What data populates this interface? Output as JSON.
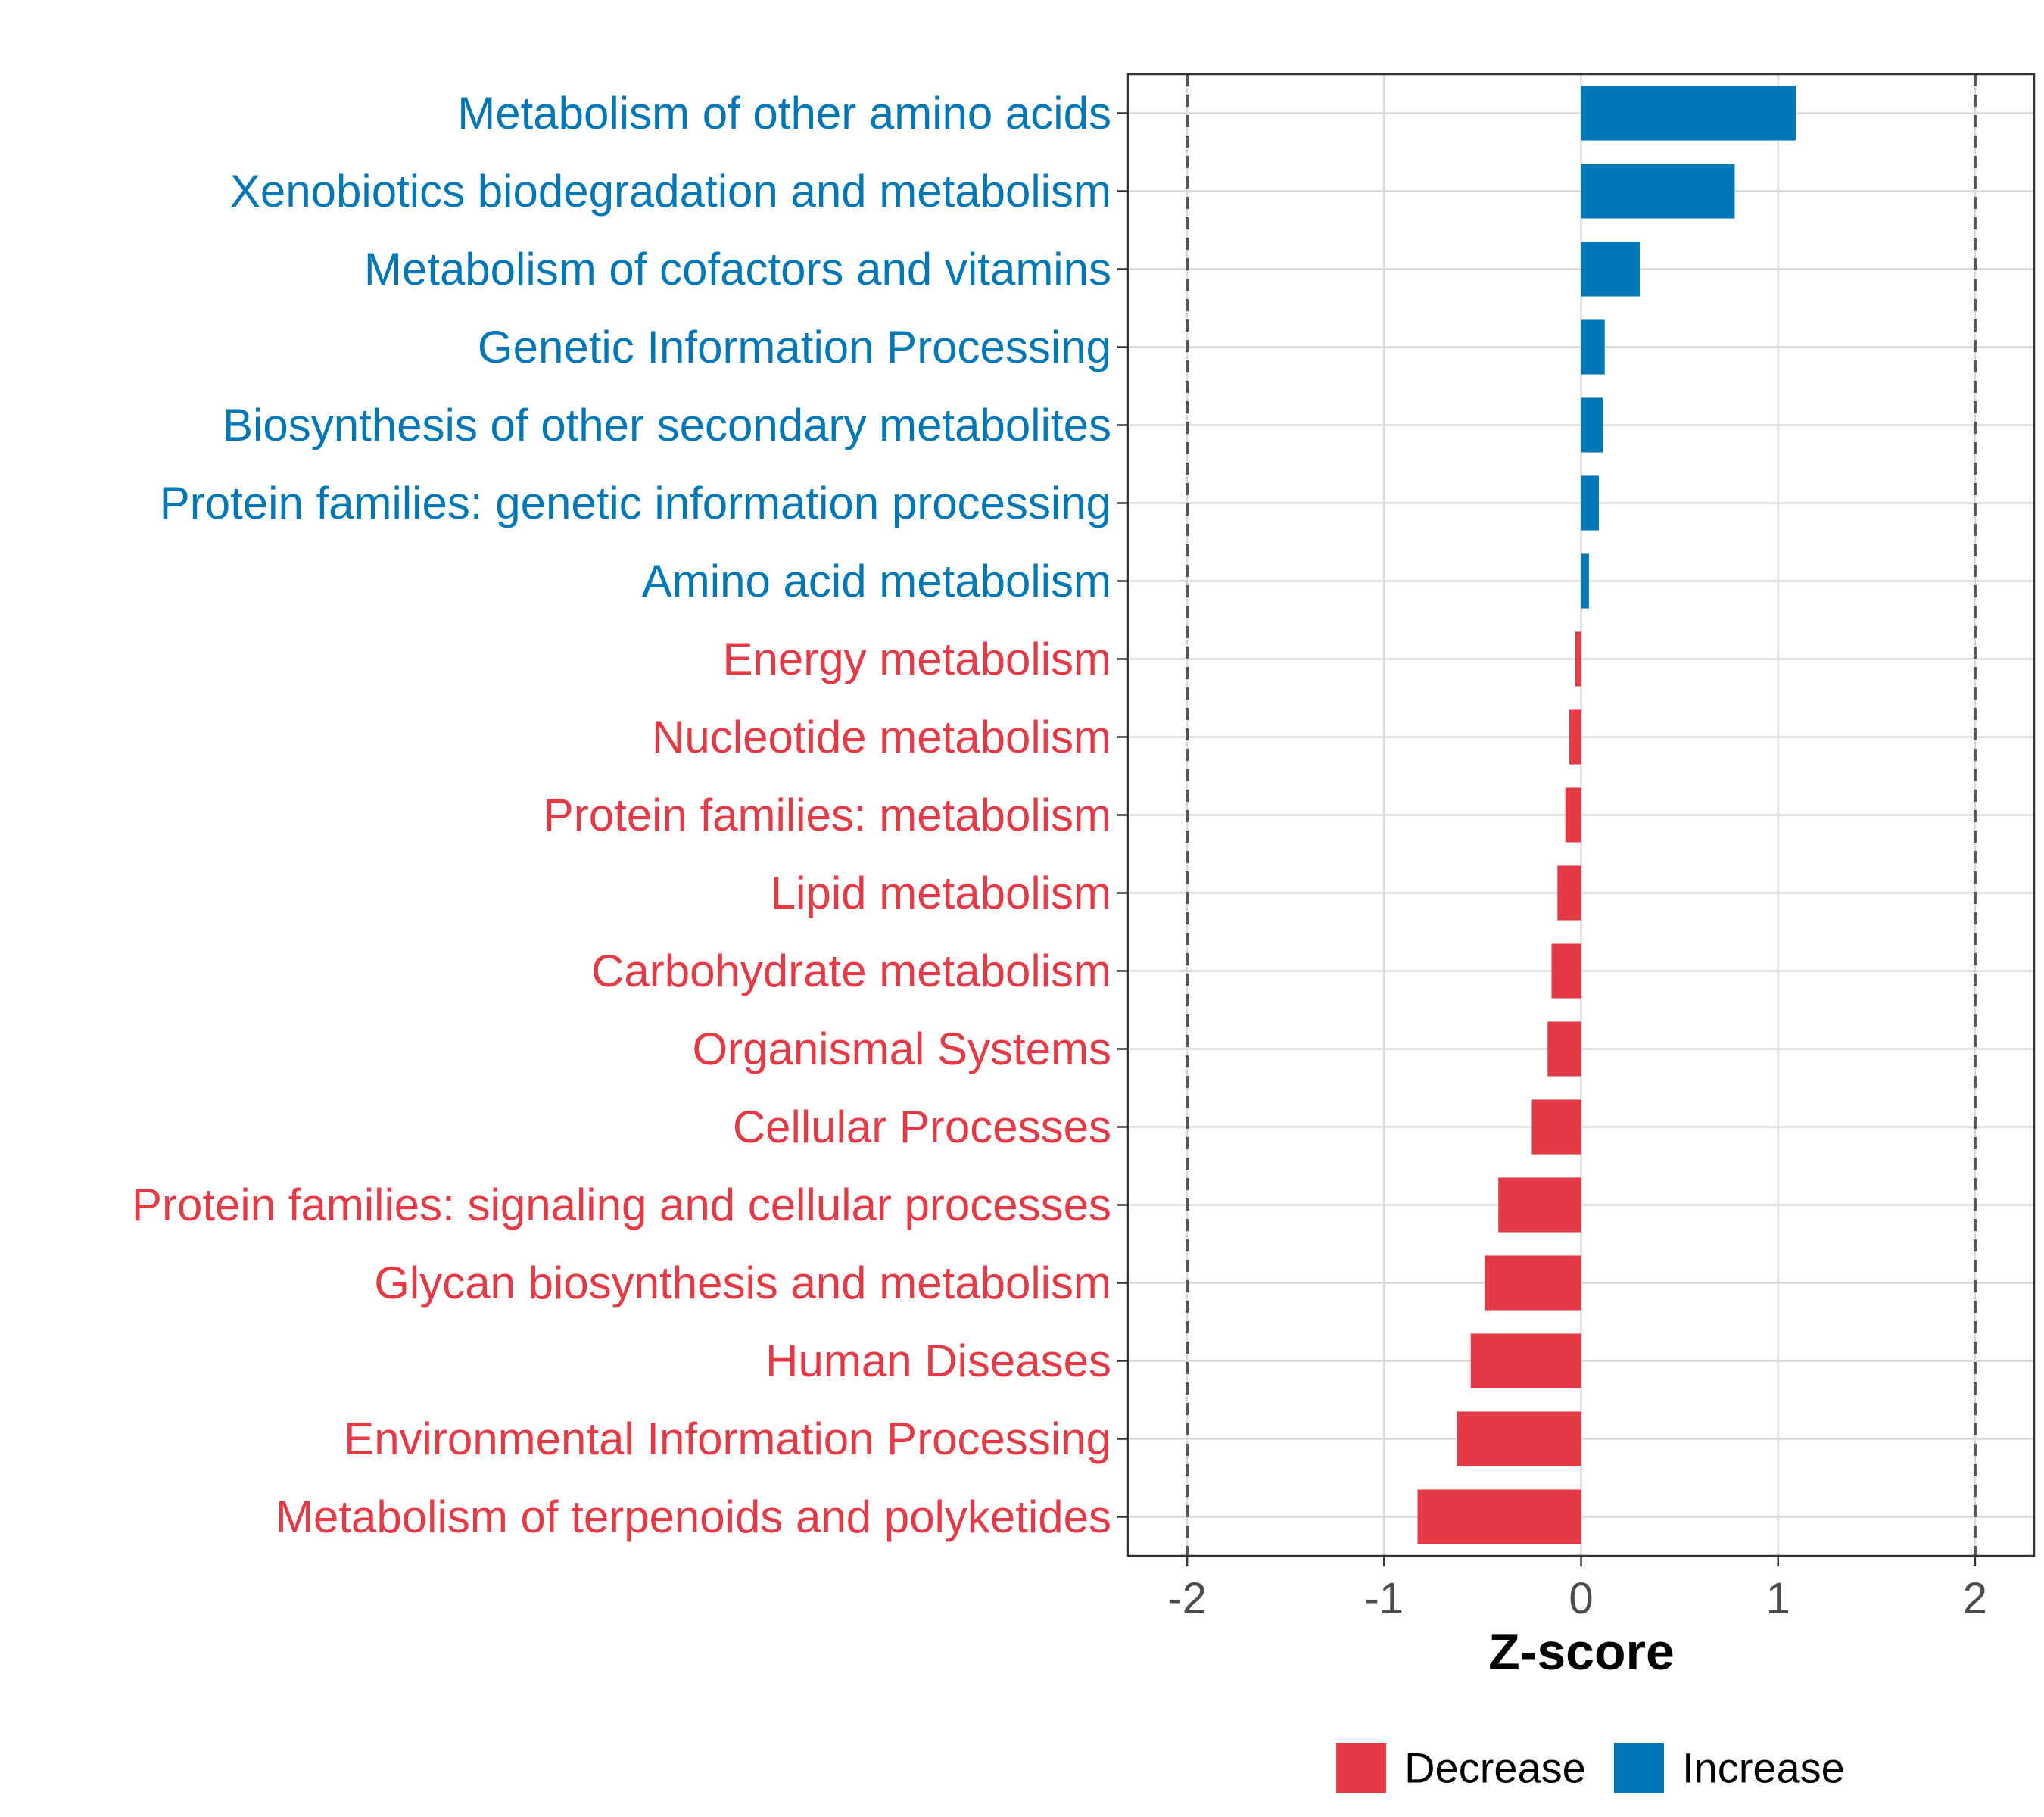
{
  "chart_data": {
    "type": "bar",
    "orientation": "horizontal",
    "title": "",
    "xlabel": "Z-score",
    "ylabel": "",
    "xlim": [
      -2.3,
      2.3
    ],
    "x_ticks": [
      -2,
      -1,
      0,
      1,
      2
    ],
    "x_tick_labels": [
      "-2",
      "-1",
      "0",
      "1",
      "2"
    ],
    "reference_lines": [
      -2,
      2
    ],
    "grid": true,
    "categories": [
      "Metabolism of other amino acids",
      "Xenobiotics biodegradation and metabolism",
      "Metabolism of cofactors and vitamins",
      "Genetic Information Processing",
      "Biosynthesis of other secondary metabolites",
      "Protein families: genetic information processing",
      "Amino acid metabolism",
      "Energy metabolism",
      "Nucleotide metabolism",
      "Protein families: metabolism",
      "Lipid metabolism",
      "Carbohydrate metabolism",
      "Organismal Systems",
      "Cellular Processes",
      "Protein families: signaling and cellular processes",
      "Glycan biosynthesis and metabolism",
      "Human Diseases",
      "Environmental Information Processing",
      "Metabolism of terpenoids and polyketides"
    ],
    "values": [
      1.09,
      0.78,
      0.3,
      0.12,
      0.11,
      0.09,
      0.04,
      -0.03,
      -0.06,
      -0.08,
      -0.12,
      -0.15,
      -0.17,
      -0.25,
      -0.42,
      -0.49,
      -0.56,
      -0.63,
      -0.83
    ],
    "groups": [
      "Increase",
      "Increase",
      "Increase",
      "Increase",
      "Increase",
      "Increase",
      "Increase",
      "Decrease",
      "Decrease",
      "Decrease",
      "Decrease",
      "Decrease",
      "Decrease",
      "Decrease",
      "Decrease",
      "Decrease",
      "Decrease",
      "Decrease",
      "Decrease"
    ],
    "legend": {
      "position": "bottom",
      "entries": [
        {
          "label": "Decrease",
          "color": "#E63946"
        },
        {
          "label": "Increase",
          "color": "#0077B6"
        }
      ]
    },
    "colors": {
      "Decrease": "#E63946",
      "Increase": "#0077B6"
    }
  }
}
